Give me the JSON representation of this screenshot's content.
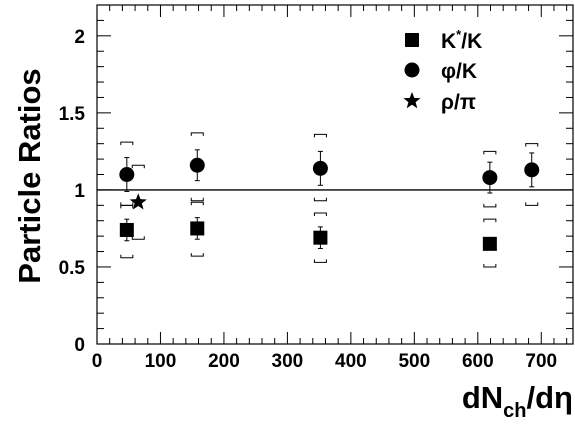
{
  "chart_data": {
    "type": "scatter",
    "xlabel": {
      "main": "dN",
      "sub": "ch",
      "tail": "/dη"
    },
    "ylabel": "Particle Ratios",
    "xlim": [
      0,
      750
    ],
    "ylim": [
      0,
      2.2
    ],
    "xticks": [
      "0",
      "100",
      "200",
      "300",
      "400",
      "500",
      "600",
      "700"
    ],
    "yticks": [
      "0",
      "0.5",
      "1",
      "1.5",
      "2"
    ],
    "reference_line": 1,
    "legend_position": "top-right",
    "series": [
      {
        "name": {
          "main": "K",
          "sup": "*",
          "tail": "/K"
        },
        "marker": "square",
        "x": [
          47,
          158,
          352,
          619
        ],
        "y": [
          0.74,
          0.75,
          0.69,
          0.65
        ],
        "stat_err": [
          0.07,
          0.07,
          0.07,
          0.0
        ],
        "sys_low": [
          0.56,
          0.57,
          0.53,
          0.5
        ],
        "sys_high": [
          0.9,
          0.92,
          0.85,
          0.81
        ]
      },
      {
        "name": {
          "main": "φ/K",
          "sup": "",
          "tail": ""
        },
        "marker": "circle",
        "x": [
          47,
          158,
          352,
          619,
          685
        ],
        "y": [
          1.1,
          1.16,
          1.14,
          1.08,
          1.13
        ],
        "stat_err": [
          0.11,
          0.1,
          0.11,
          0.1,
          0.11
        ],
        "sys_low": [
          0.9,
          0.93,
          0.93,
          0.89,
          0.9
        ],
        "sys_high": [
          1.31,
          1.37,
          1.36,
          1.25,
          1.3
        ]
      },
      {
        "name": {
          "main": "ρ/π",
          "sup": "",
          "tail": ""
        },
        "marker": "star",
        "x": [
          65
        ],
        "y": [
          0.92
        ],
        "stat_err": [
          0.0
        ],
        "sys_low": [
          0.68
        ],
        "sys_high": [
          1.16
        ]
      }
    ]
  }
}
